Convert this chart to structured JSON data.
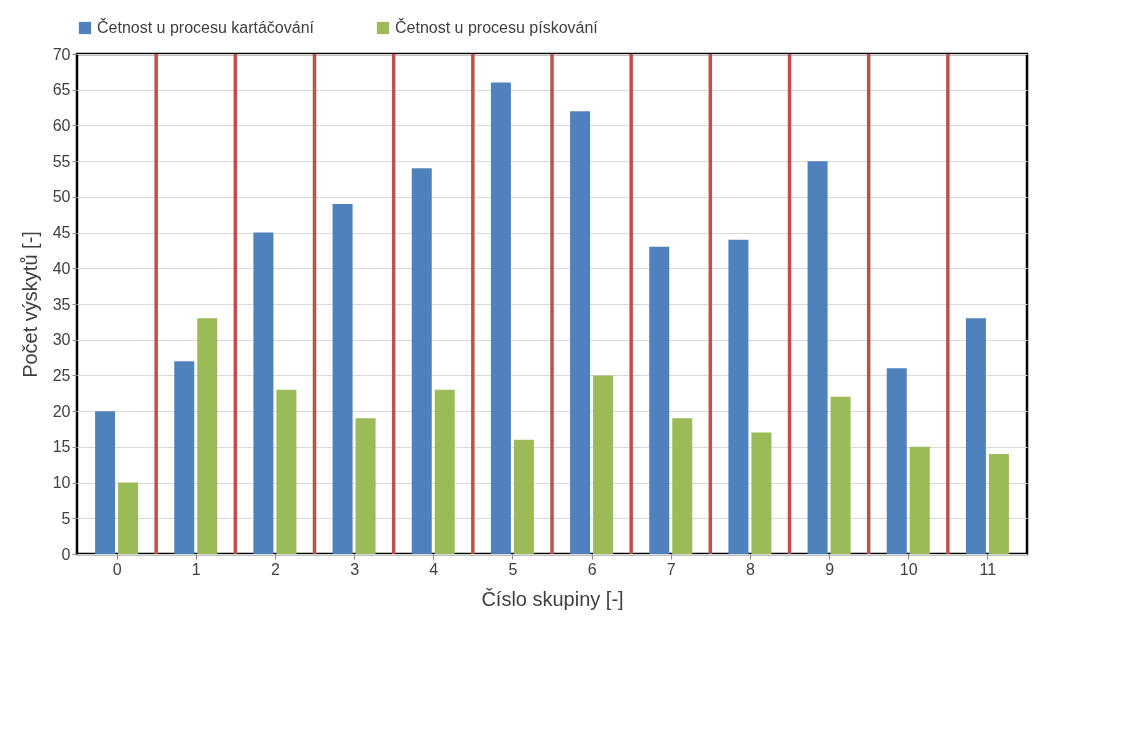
{
  "chart_data": {
    "type": "bar",
    "xlabel": "Číslo skupiny [-]",
    "ylabel": "Počet výskytů [-]",
    "x": [
      0,
      1,
      2,
      3,
      4,
      5,
      6,
      7,
      8,
      9,
      10,
      11
    ],
    "xlim": [
      -0.5,
      11.5
    ],
    "xticks": [
      0,
      1,
      2,
      3,
      4,
      5,
      6,
      7,
      8,
      9,
      10,
      11
    ],
    "ylim": [
      0,
      70
    ],
    "yticks": [
      0,
      5,
      10,
      15,
      20,
      25,
      30,
      35,
      40,
      45,
      50,
      55,
      60,
      65,
      70
    ],
    "series": [
      {
        "name": "Četnost u procesu kartáčování",
        "color": "#4f81bd",
        "values": [
          20,
          27,
          45,
          49,
          54,
          66,
          62,
          43,
          44,
          55,
          26,
          33
        ]
      },
      {
        "name": "Četnost u procesu pískování",
        "color": "#9bbb59",
        "values": [
          10,
          33,
          23,
          19,
          23,
          16,
          25,
          19,
          17,
          22,
          15,
          14
        ]
      }
    ],
    "ref_lines": [
      {
        "axis": "x",
        "value": 0.5,
        "color": "#c0504d"
      },
      {
        "axis": "x",
        "value": 1.5,
        "color": "#c0504d"
      },
      {
        "axis": "x",
        "value": 2.5,
        "color": "#c0504d"
      },
      {
        "axis": "x",
        "value": 3.5,
        "color": "#c0504d"
      },
      {
        "axis": "x",
        "value": 4.5,
        "color": "#c0504d"
      },
      {
        "axis": "x",
        "value": 5.5,
        "color": "#c0504d"
      },
      {
        "axis": "x",
        "value": 6.5,
        "color": "#c0504d"
      },
      {
        "axis": "x",
        "value": 7.5,
        "color": "#c0504d"
      },
      {
        "axis": "x",
        "value": 8.5,
        "color": "#c0504d"
      },
      {
        "axis": "x",
        "value": 9.5,
        "color": "#c0504d"
      },
      {
        "axis": "x",
        "value": 10.5,
        "color": "#c0504d"
      }
    ],
    "grid": "y",
    "legend": "top"
  }
}
